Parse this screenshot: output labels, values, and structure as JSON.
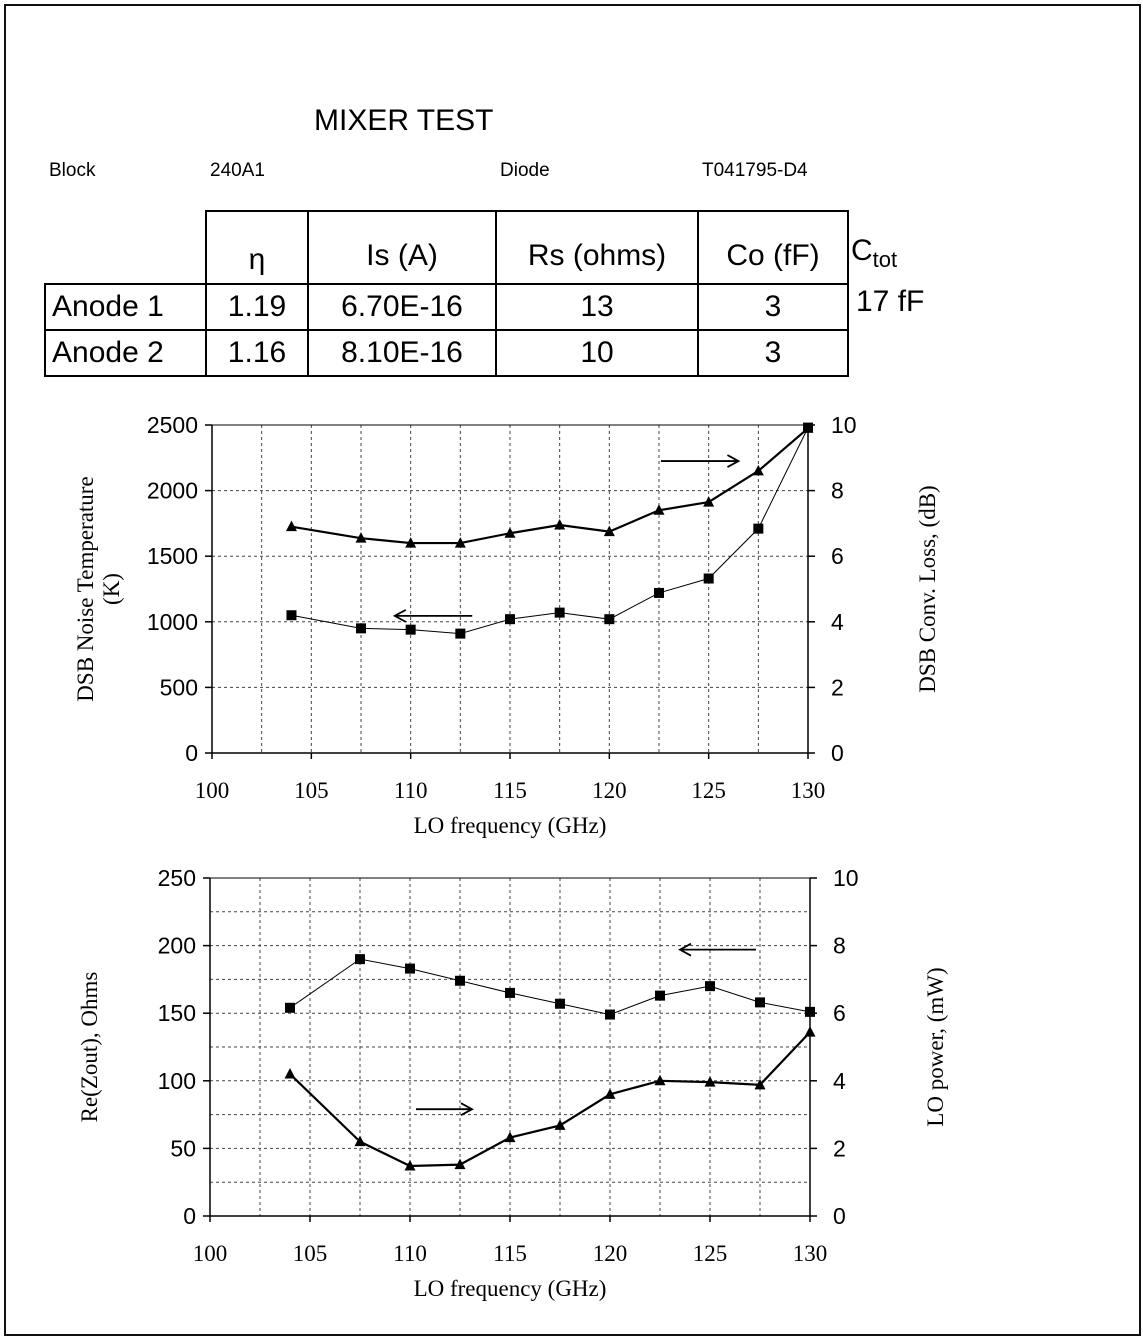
{
  "header": {
    "title": "MIXER TEST",
    "block_label": "Block",
    "block_value": "240A1",
    "diode_label": "Diode",
    "diode_value": "T041795-D4"
  },
  "params_table": {
    "columns": [
      "η",
      "Is (A)",
      "Rs (ohms)",
      "Co (fF)"
    ],
    "rows": [
      {
        "label": "Anode 1",
        "values": [
          "1.19",
          "6.70E-16",
          "13",
          "3"
        ]
      },
      {
        "label": "Anode 2",
        "values": [
          "1.16",
          "8.10E-16",
          "10",
          "3"
        ]
      }
    ],
    "ctot_label": "C",
    "ctot_sub": "tot",
    "ctot_value": "17 fF"
  },
  "chart_data": [
    {
      "type": "line",
      "xlabel": "LO frequency (GHz)",
      "ylabel_left": "DSB Noise Temperature (K)",
      "ylabel_right": "DSB Conv. Loss, (dB)",
      "xlim": [
        100,
        130
      ],
      "ylim_left": [
        0,
        2500
      ],
      "ylim_right": [
        0,
        10
      ],
      "x_ticks": [
        100,
        105,
        110,
        115,
        120,
        125,
        130
      ],
      "y_ticks_left": [
        0,
        500,
        1000,
        1500,
        2000,
        2500
      ],
      "y_ticks_right": [
        0,
        2,
        4,
        6,
        8,
        10
      ],
      "grid": true,
      "series": [
        {
          "axis": "left",
          "marker": "square",
          "x": [
            104,
            107.5,
            110,
            112.5,
            115,
            117.5,
            120,
            122.5,
            125,
            127.5,
            130
          ],
          "values": [
            1050,
            950,
            940,
            910,
            1020,
            1070,
            1020,
            1220,
            1330,
            1710,
            2480
          ]
        },
        {
          "axis": "right",
          "marker": "triangle",
          "x": [
            104,
            107.5,
            110,
            112.5,
            115,
            117.5,
            120,
            122.5,
            125,
            127.5,
            130
          ],
          "values": [
            6.9,
            6.55,
            6.4,
            6.4,
            6.7,
            6.95,
            6.75,
            7.4,
            7.65,
            8.6,
            9.9
          ]
        }
      ]
    },
    {
      "type": "line",
      "xlabel": "LO frequency (GHz)",
      "ylabel_left": "Re(Zout), Ohms",
      "ylabel_right": "LO power, (mW)",
      "xlim": [
        100,
        130
      ],
      "ylim_left": [
        0,
        250
      ],
      "ylim_right": [
        0,
        10
      ],
      "x_ticks": [
        100,
        105,
        110,
        115,
        120,
        125,
        130
      ],
      "y_ticks_left": [
        0,
        50,
        100,
        150,
        200,
        250
      ],
      "y_ticks_right": [
        0,
        2,
        4,
        6,
        8,
        10
      ],
      "grid": true,
      "series": [
        {
          "axis": "left",
          "marker": "square",
          "x": [
            104,
            107.5,
            110,
            112.5,
            115,
            117.5,
            120,
            122.5,
            125,
            127.5,
            130
          ],
          "values": [
            154,
            190,
            183,
            174,
            165,
            157,
            149,
            163,
            170,
            158,
            151
          ]
        },
        {
          "axis": "left",
          "marker": "triangle",
          "x": [
            104,
            107.5,
            110,
            112.5,
            115,
            117.5,
            120,
            122.5,
            125,
            127.5,
            130
          ],
          "values": [
            105,
            55,
            37,
            38,
            58,
            67,
            90,
            100,
            99,
            97,
            136
          ]
        }
      ]
    }
  ]
}
